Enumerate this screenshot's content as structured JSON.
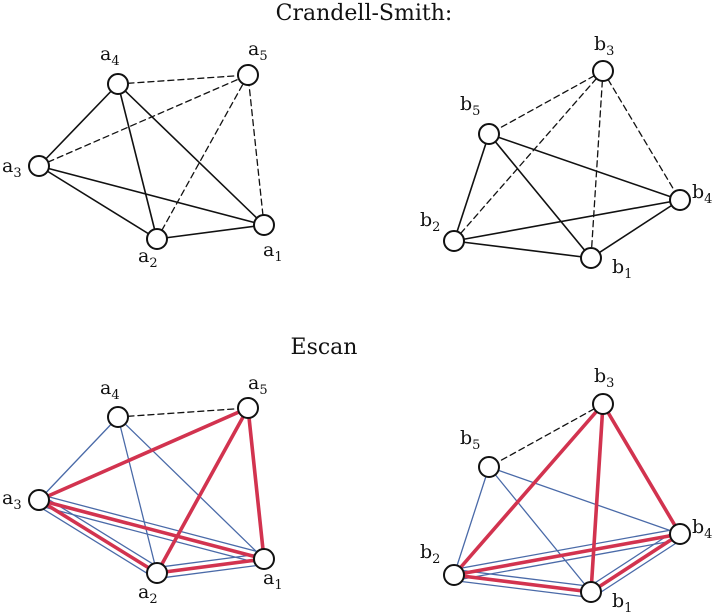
{
  "panels": [
    {
      "id": "crandell-smith",
      "title": "Crandell-Smith:",
      "graphs": [
        {
          "id": "cs-a",
          "nodes": [
            {
              "id": "a1",
              "base": "a",
              "sub": "1"
            },
            {
              "id": "a2",
              "base": "a",
              "sub": "2"
            },
            {
              "id": "a3",
              "base": "a",
              "sub": "3"
            },
            {
              "id": "a4",
              "base": "a",
              "sub": "4"
            },
            {
              "id": "a5",
              "base": "a",
              "sub": "5"
            }
          ],
          "edges": [
            {
              "from": "a4",
              "to": "a3",
              "style": "solid"
            },
            {
              "from": "a4",
              "to": "a2",
              "style": "solid"
            },
            {
              "from": "a4",
              "to": "a1",
              "style": "solid"
            },
            {
              "from": "a3",
              "to": "a2",
              "style": "solid"
            },
            {
              "from": "a3",
              "to": "a1",
              "style": "solid"
            },
            {
              "from": "a2",
              "to": "a1",
              "style": "solid"
            },
            {
              "from": "a4",
              "to": "a5",
              "style": "dashed"
            },
            {
              "from": "a3",
              "to": "a5",
              "style": "dashed"
            },
            {
              "from": "a2",
              "to": "a5",
              "style": "dashed"
            },
            {
              "from": "a1",
              "to": "a5",
              "style": "dashed"
            }
          ]
        },
        {
          "id": "cs-b",
          "nodes": [
            {
              "id": "b1",
              "base": "b",
              "sub": "1"
            },
            {
              "id": "b2",
              "base": "b",
              "sub": "2"
            },
            {
              "id": "b3",
              "base": "b",
              "sub": "3"
            },
            {
              "id": "b4",
              "base": "b",
              "sub": "4"
            },
            {
              "id": "b5",
              "base": "b",
              "sub": "5"
            }
          ],
          "edges": [
            {
              "from": "b5",
              "to": "b2",
              "style": "solid"
            },
            {
              "from": "b5",
              "to": "b1",
              "style": "solid"
            },
            {
              "from": "b5",
              "to": "b4",
              "style": "solid"
            },
            {
              "from": "b2",
              "to": "b1",
              "style": "solid"
            },
            {
              "from": "b2",
              "to": "b4",
              "style": "solid"
            },
            {
              "from": "b1",
              "to": "b4",
              "style": "solid"
            },
            {
              "from": "b3",
              "to": "b5",
              "style": "dashed"
            },
            {
              "from": "b3",
              "to": "b2",
              "style": "dashed"
            },
            {
              "from": "b3",
              "to": "b1",
              "style": "dashed"
            },
            {
              "from": "b3",
              "to": "b4",
              "style": "dashed"
            }
          ]
        }
      ]
    },
    {
      "id": "escan",
      "title": "Escan",
      "graphs": [
        {
          "id": "es-a",
          "nodes": [
            {
              "id": "a1",
              "base": "a",
              "sub": "1"
            },
            {
              "id": "a2",
              "base": "a",
              "sub": "2"
            },
            {
              "id": "a3",
              "base": "a",
              "sub": "3"
            },
            {
              "id": "a4",
              "base": "a",
              "sub": "4"
            },
            {
              "id": "a5",
              "base": "a",
              "sub": "5"
            }
          ],
          "edges": [
            {
              "from": "a4",
              "to": "a5",
              "style": "dashed"
            },
            {
              "from": "a4",
              "to": "a3",
              "style": "blue"
            },
            {
              "from": "a4",
              "to": "a2",
              "style": "blue"
            },
            {
              "from": "a4",
              "to": "a1",
              "style": "blue"
            },
            {
              "from": "a3",
              "to": "a2",
              "style": "blue-double"
            },
            {
              "from": "a3",
              "to": "a1",
              "style": "blue-double"
            },
            {
              "from": "a2",
              "to": "a1",
              "style": "blue-double"
            },
            {
              "from": "a3",
              "to": "a5",
              "style": "red"
            },
            {
              "from": "a5",
              "to": "a2",
              "style": "red"
            },
            {
              "from": "a5",
              "to": "a1",
              "style": "red"
            },
            {
              "from": "a3",
              "to": "a1",
              "style": "red"
            },
            {
              "from": "a3",
              "to": "a2",
              "style": "red"
            },
            {
              "from": "a2",
              "to": "a1",
              "style": "red"
            }
          ]
        },
        {
          "id": "es-b",
          "nodes": [
            {
              "id": "b1",
              "base": "b",
              "sub": "1"
            },
            {
              "id": "b2",
              "base": "b",
              "sub": "2"
            },
            {
              "id": "b3",
              "base": "b",
              "sub": "3"
            },
            {
              "id": "b4",
              "base": "b",
              "sub": "4"
            },
            {
              "id": "b5",
              "base": "b",
              "sub": "5"
            }
          ],
          "edges": [
            {
              "from": "b3",
              "to": "b5",
              "style": "dashed"
            },
            {
              "from": "b5",
              "to": "b2",
              "style": "blue"
            },
            {
              "from": "b5",
              "to": "b1",
              "style": "blue"
            },
            {
              "from": "b5",
              "to": "b4",
              "style": "blue"
            },
            {
              "from": "b2",
              "to": "b1",
              "style": "blue-double"
            },
            {
              "from": "b2",
              "to": "b4",
              "style": "blue-double"
            },
            {
              "from": "b1",
              "to": "b4",
              "style": "blue-double"
            },
            {
              "from": "b3",
              "to": "b2",
              "style": "red"
            },
            {
              "from": "b3",
              "to": "b1",
              "style": "red"
            },
            {
              "from": "b3",
              "to": "b4",
              "style": "red"
            },
            {
              "from": "b2",
              "to": "b4",
              "style": "red"
            },
            {
              "from": "b2",
              "to": "b1",
              "style": "red"
            },
            {
              "from": "b1",
              "to": "b4",
              "style": "red"
            }
          ]
        }
      ]
    }
  ],
  "colors": {
    "black": "#111111",
    "blue": "#4a6aa8",
    "red": "#d2334f"
  }
}
